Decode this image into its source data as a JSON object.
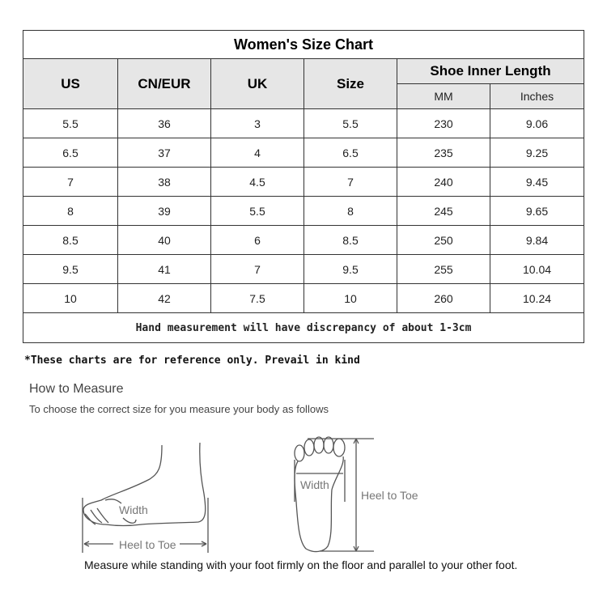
{
  "chart_data": {
    "type": "table",
    "title": "Women's Size Chart",
    "columns": [
      "US",
      "CN/EUR",
      "UK",
      "Size",
      "Shoe Inner Length"
    ],
    "subcolumns": {
      "Shoe Inner Length": [
        "MM",
        "Inches"
      ]
    },
    "rows": [
      [
        "5.5",
        "36",
        "3",
        "5.5",
        "230",
        "9.06"
      ],
      [
        "6.5",
        "37",
        "4",
        "6.5",
        "235",
        "9.25"
      ],
      [
        "7",
        "38",
        "4.5",
        "7",
        "240",
        "9.45"
      ],
      [
        "8",
        "39",
        "5.5",
        "8",
        "245",
        "9.65"
      ],
      [
        "8.5",
        "40",
        "6",
        "8.5",
        "250",
        "9.84"
      ],
      [
        "9.5",
        "41",
        "7",
        "9.5",
        "255",
        "10.04"
      ],
      [
        "10",
        "42",
        "7.5",
        "10",
        "260",
        "10.24"
      ]
    ],
    "footer": "Hand measurement will have discrepancy of about 1-3cm"
  },
  "note": "*These charts are for reference only. Prevail in kind",
  "how_to": {
    "title": "How to Measure",
    "subtitle": "To choose the correct size for you measure your body as follows",
    "side_width": "Width",
    "side_length": "Heel to Toe",
    "top_width": "Width",
    "top_length": "Heel to Toe",
    "instruction": "Measure while standing with your foot firmly on the floor and parallel to your other foot."
  },
  "colors": {
    "header_bg": "#e6e6e6",
    "border": "#333333"
  }
}
